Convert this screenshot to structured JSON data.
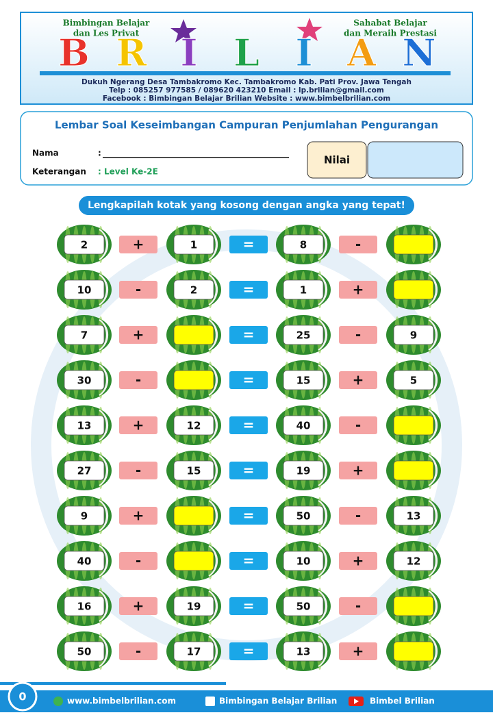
{
  "header": {
    "left_tagline": [
      "Bimbingan Belajar",
      "dan Les Privat"
    ],
    "right_tagline": [
      "Sahabat Belajar",
      "dan Meraih Prestasi"
    ],
    "logo": [
      "B",
      "R",
      "I",
      "L",
      "I",
      "A",
      "N"
    ],
    "address": [
      "Dukuh Ngerang Desa Tambakromo Kec. Tambakromo Kab. Pati Prov. Jawa Tengah",
      "Telp : 085257 977585 / 089620 423210     Email : lp.brilian@gmail.com",
      "Facebook : Bimbingan Belajar Brilian      Website : www.bimbelbrilian.com"
    ]
  },
  "info": {
    "title": "Lembar Soal Keseimbangan Campuran Penjumlahan Pengurangan",
    "name_label": "Nama",
    "name_colon": ":",
    "note_label": "Keterangan",
    "note_value": ": Level Ke-2E",
    "score_label": "Nilai"
  },
  "instruction": "Lengkapilah kotak yang kosong dengan angka yang tepat!",
  "rows": [
    [
      2,
      "+",
      1,
      "=",
      8,
      "-",
      null
    ],
    [
      10,
      "-",
      2,
      "=",
      1,
      "+",
      null
    ],
    [
      7,
      "+",
      null,
      "=",
      25,
      "-",
      9
    ],
    [
      30,
      "-",
      null,
      "=",
      15,
      "+",
      5
    ],
    [
      13,
      "+",
      12,
      "=",
      40,
      "-",
      null
    ],
    [
      27,
      "-",
      15,
      "=",
      19,
      "+",
      null
    ],
    [
      9,
      "+",
      null,
      "=",
      50,
      "-",
      13
    ],
    [
      40,
      "-",
      null,
      "=",
      10,
      "+",
      12
    ],
    [
      16,
      "+",
      19,
      "=",
      50,
      "-",
      null
    ],
    [
      50,
      "-",
      17,
      "=",
      13,
      "+",
      null
    ]
  ],
  "footer": {
    "page": "0",
    "website": "www.bimbelbrilian.com",
    "facebook": "Bimbingan Belajar Brilian",
    "youtube": "Bimbel Brilian"
  }
}
